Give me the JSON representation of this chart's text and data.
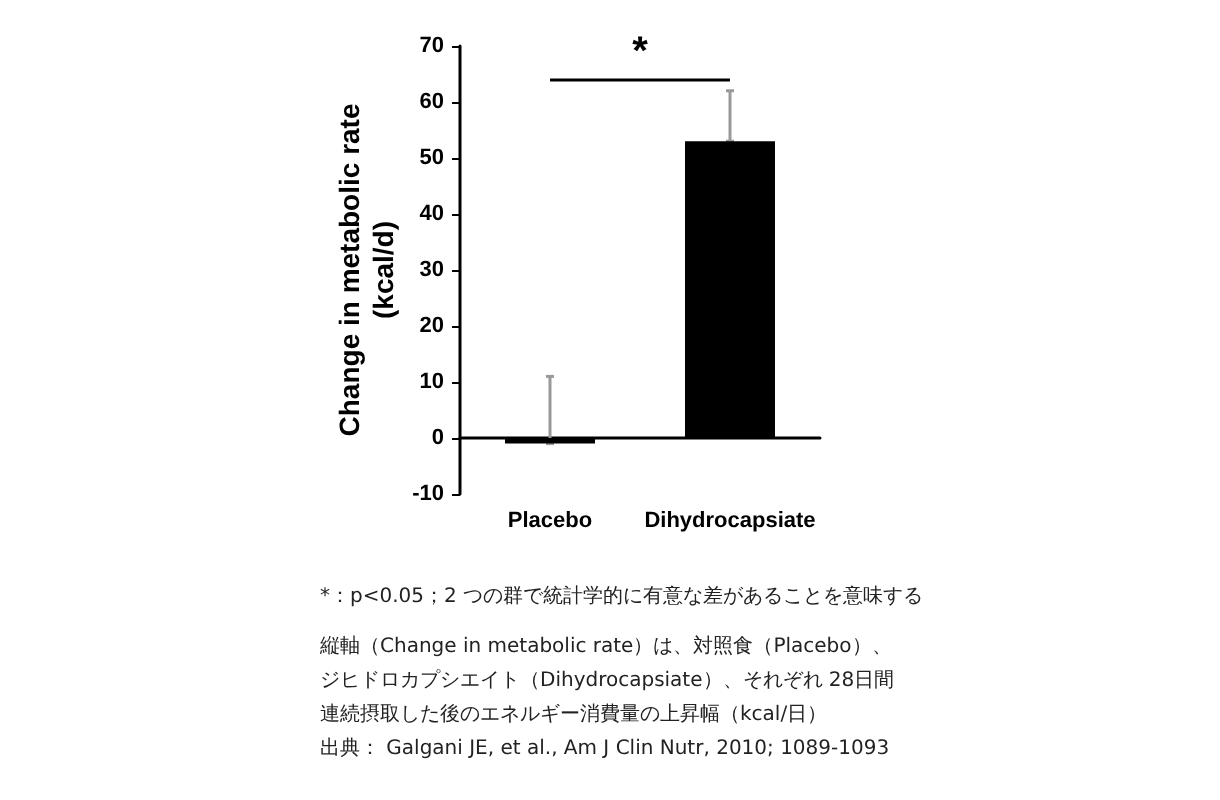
{
  "chart_data": {
    "type": "bar",
    "ylabel": "Change in metabolic rate\n(kcal/d)",
    "categories": [
      "Placebo",
      "Dihydrocapsiate"
    ],
    "values": [
      -1,
      53
    ],
    "color": "#000000",
    "errors": [
      [
        -1,
        11
      ],
      [
        53,
        62
      ]
    ],
    "ylim": [
      -10,
      70
    ],
    "yticks": [
      -10,
      0,
      10,
      20,
      30,
      40,
      50,
      60,
      70
    ],
    "annotations": [
      "*",
      "*：p<0.05；2 つの群で統計学的に有意な差があることを意味する",
      "縦軸（Change in metabolic rate）は、対照食（Placebo）、",
      "ジヒドロカプシエイト（Dihydrocapsiate）、それぞれ 28日間",
      "連続摂取した後のエネルギー消費量の上昇幅（kcal/日）",
      "出典： Galgani JE, et al., Am J Clin Nutr, 2010; 1089-1093"
    ]
  }
}
